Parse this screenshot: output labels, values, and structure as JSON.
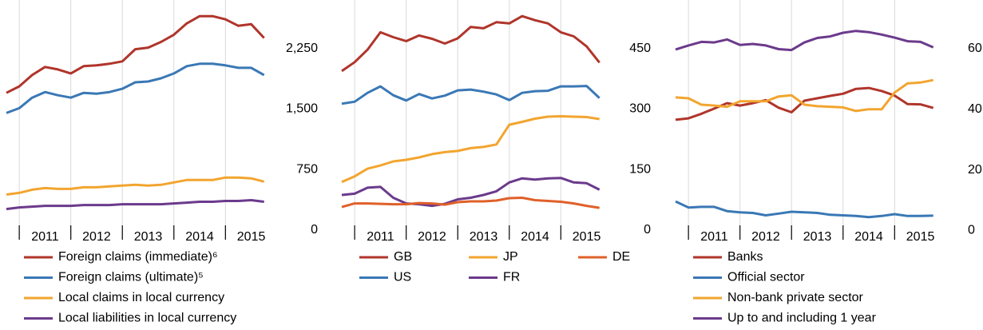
{
  "chart_data": [
    {
      "type": "line",
      "legend": "bottom",
      "grid": true,
      "x": [
        2010.75,
        2011,
        2011.25,
        2011.5,
        2011.75,
        2012,
        2012.25,
        2012.5,
        2012.75,
        2013,
        2013.25,
        2013.5,
        2013.75,
        2014,
        2014.25,
        2014.5,
        2014.75,
        2015,
        2015.25,
        2015.5,
        2015.75
      ],
      "xlim": [
        2010.75,
        2016.25
      ],
      "xticks": [
        2011,
        2012,
        2013,
        2014,
        2015
      ],
      "ylim": [
        -100,
        2850
      ],
      "yticks": [
        0,
        750,
        {
          "value": 1500,
          "label": "1,500"
        },
        {
          "value": 2250,
          "label": "2,250"
        }
      ],
      "series": [
        {
          "name": "Foreign claims (immediate)⁶",
          "color": "#b0352b",
          "values": [
            1700,
            1780,
            1920,
            2020,
            1990,
            1940,
            2030,
            2040,
            2060,
            2090,
            2240,
            2260,
            2330,
            2420,
            2560,
            2650,
            2650,
            2610,
            2530,
            2550,
            2380
          ]
        },
        {
          "name": "Foreign claims (ultimate)⁵",
          "color": "#3a78b5",
          "values": [
            1450,
            1510,
            1640,
            1710,
            1670,
            1640,
            1700,
            1690,
            1710,
            1750,
            1830,
            1840,
            1880,
            1940,
            2030,
            2060,
            2060,
            2040,
            2010,
            2010,
            1920
          ]
        },
        {
          "name": "Local claims in local currency",
          "color": "#f2a52f",
          "values": [
            440,
            460,
            500,
            520,
            510,
            510,
            530,
            530,
            540,
            550,
            560,
            550,
            560,
            590,
            620,
            620,
            620,
            650,
            650,
            640,
            600
          ]
        },
        {
          "name": "Local liabilities in local currency",
          "color": "#6b3a8c",
          "values": [
            260,
            280,
            290,
            300,
            300,
            300,
            310,
            310,
            310,
            320,
            320,
            320,
            320,
            330,
            340,
            350,
            350,
            360,
            360,
            370,
            350
          ]
        }
      ]
    },
    {
      "type": "line",
      "legend": "bottom",
      "grid": true,
      "x": [
        2010.75,
        2011,
        2011.25,
        2011.5,
        2011.75,
        2012,
        2012.25,
        2012.5,
        2012.75,
        2013,
        2013.25,
        2013.5,
        2013.75,
        2014,
        2014.25,
        2014.5,
        2014.75,
        2015,
        2015.25,
        2015.5,
        2015.75
      ],
      "xlim": [
        2010.75,
        2016.25
      ],
      "xticks": [
        2011,
        2012,
        2013,
        2014,
        2015
      ],
      "ylim": [
        -20,
        570
      ],
      "yticks": [
        0,
        150,
        300,
        450
      ],
      "series": [
        {
          "name": "GB",
          "color": "#b0352b",
          "values": [
            394,
            416,
            447,
            490,
            478,
            468,
            482,
            474,
            462,
            475,
            503,
            500,
            515,
            512,
            530,
            520,
            512,
            490,
            480,
            455,
            415
          ]
        },
        {
          "name": "US",
          "color": "#3a78b5",
          "values": [
            313,
            318,
            340,
            356,
            334,
            321,
            337,
            326,
            333,
            346,
            348,
            343,
            336,
            322,
            340,
            344,
            345,
            356,
            356,
            357,
            327
          ]
        },
        {
          "name": "JP",
          "color": "#f2a52f",
          "values": [
            119,
            133,
            152,
            160,
            170,
            174,
            180,
            188,
            193,
            196,
            203,
            206,
            212,
            261,
            268,
            276,
            281,
            282,
            281,
            280,
            275
          ]
        },
        {
          "name": "FR",
          "color": "#6b3a8c",
          "values": [
            87,
            90,
            105,
            107,
            80,
            66,
            64,
            60,
            65,
            76,
            80,
            87,
            96,
            118,
            128,
            125,
            128,
            129,
            118,
            116,
            100
          ]
        },
        {
          "name": "DE",
          "color": "#e0602a",
          "values": [
            57,
            66,
            66,
            65,
            64,
            64,
            67,
            66,
            63,
            69,
            71,
            71,
            73,
            79,
            80,
            74,
            72,
            70,
            66,
            60,
            55
          ]
        }
      ]
    },
    {
      "type": "line",
      "legend": "bottom",
      "grid": true,
      "x": [
        2010.75,
        2011,
        2011.25,
        2011.5,
        2011.75,
        2012,
        2012.25,
        2012.5,
        2012.75,
        2013,
        2013.25,
        2013.5,
        2013.75,
        2014,
        2014.25,
        2014.5,
        2014.75,
        2015,
        2015.25,
        2015.5,
        2015.75
      ],
      "xlim": [
        2010.75,
        2016.25
      ],
      "xticks": [
        2011,
        2012,
        2013,
        2014,
        2015
      ],
      "ylim": [
        -2.5,
        76
      ],
      "yticks": [
        0,
        20,
        40,
        60
      ],
      "series": [
        {
          "name": "Banks",
          "color": "#b0352b",
          "values": [
            36.5,
            37,
            38.5,
            40.2,
            42,
            41.2,
            42,
            43,
            40.5,
            39,
            42.8,
            43.6,
            44.4,
            45.1,
            46.7,
            47,
            46,
            44.5,
            41.7,
            41.6,
            40.4
          ]
        },
        {
          "name": "Official sector",
          "color": "#3a78b5",
          "values": [
            9.6,
            7.6,
            7.8,
            7.8,
            6.4,
            6,
            5.8,
            5,
            5.6,
            6.2,
            6,
            5.8,
            5.2,
            5,
            4.8,
            4.4,
            4.8,
            5.4,
            4.8,
            4.8,
            4.9
          ]
        },
        {
          "name": "Non-bank private sector",
          "color": "#f2a52f",
          "values": [
            43.9,
            43.6,
            41.5,
            41.2,
            40.8,
            42.6,
            42.6,
            42.6,
            44.2,
            44.6,
            41.5,
            41,
            40.8,
            40.6,
            39.4,
            40,
            40,
            45.5,
            48.5,
            48.8,
            49.6
          ]
        },
        {
          "name": "Up to and including 1 year",
          "color": "#6b3a8c",
          "values": [
            59.7,
            61,
            62.2,
            62,
            63,
            61.2,
            61.5,
            61,
            59.8,
            59.5,
            62,
            63.5,
            64,
            65.2,
            65.8,
            65.4,
            64.6,
            63.6,
            62.4,
            62.2,
            60.4
          ]
        }
      ]
    }
  ]
}
